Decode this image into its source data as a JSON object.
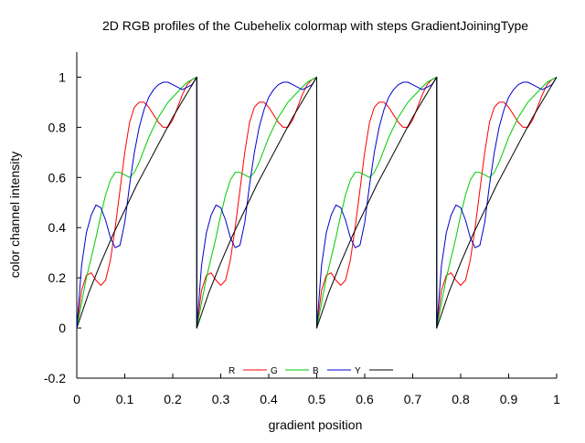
{
  "chart_data": {
    "type": "line",
    "title": "2D RGB profiles of the Cubehelix colormap with steps GradientJoiningType",
    "xlabel": "gradient position",
    "ylabel": "color channel intensity",
    "xlim": [
      0,
      1
    ],
    "ylim": [
      -0.2,
      1.1
    ],
    "xticks": [
      "0",
      "0.1",
      "0.2",
      "0.3",
      "0.4",
      "0.5",
      "0.6",
      "0.7",
      "0.8",
      "0.9",
      "1"
    ],
    "yticks": [
      "-0.2",
      "0",
      "0.2",
      "0.4",
      "0.6",
      "0.8",
      "1"
    ],
    "legend_position": "bottom-center",
    "repeats": 4,
    "segment_width": 0.25,
    "series": [
      {
        "name": "R",
        "color": "#ff0000",
        "x": [
          0,
          0.01,
          0.02,
          0.03,
          0.04,
          0.05,
          0.06,
          0.07,
          0.08,
          0.09,
          0.1,
          0.11,
          0.12,
          0.13,
          0.14,
          0.15,
          0.16,
          0.17,
          0.18,
          0.19,
          0.2,
          0.21,
          0.22,
          0.23,
          0.24,
          0.25
        ],
        "values": [
          0.0,
          0.15,
          0.21,
          0.22,
          0.19,
          0.17,
          0.19,
          0.27,
          0.4,
          0.55,
          0.7,
          0.82,
          0.88,
          0.9,
          0.9,
          0.88,
          0.85,
          0.82,
          0.8,
          0.8,
          0.83,
          0.88,
          0.93,
          0.97,
          0.99,
          1.0
        ]
      },
      {
        "name": "G",
        "color": "#00cc00",
        "x": [
          0,
          0.01,
          0.02,
          0.03,
          0.04,
          0.05,
          0.06,
          0.07,
          0.08,
          0.09,
          0.1,
          0.11,
          0.12,
          0.13,
          0.14,
          0.15,
          0.16,
          0.17,
          0.18,
          0.19,
          0.2,
          0.21,
          0.22,
          0.23,
          0.24,
          0.25
        ],
        "values": [
          0.0,
          0.1,
          0.2,
          0.28,
          0.36,
          0.45,
          0.53,
          0.59,
          0.62,
          0.62,
          0.61,
          0.6,
          0.62,
          0.66,
          0.71,
          0.76,
          0.8,
          0.84,
          0.87,
          0.9,
          0.92,
          0.94,
          0.96,
          0.98,
          0.99,
          1.0
        ]
      },
      {
        "name": "B",
        "color": "#0000cc",
        "x": [
          0,
          0.01,
          0.02,
          0.03,
          0.04,
          0.05,
          0.06,
          0.07,
          0.08,
          0.09,
          0.1,
          0.11,
          0.12,
          0.13,
          0.14,
          0.15,
          0.16,
          0.17,
          0.18,
          0.19,
          0.2,
          0.21,
          0.22,
          0.23,
          0.24,
          0.25
        ],
        "values": [
          0.0,
          0.25,
          0.38,
          0.45,
          0.49,
          0.48,
          0.43,
          0.36,
          0.32,
          0.33,
          0.42,
          0.57,
          0.7,
          0.8,
          0.87,
          0.92,
          0.95,
          0.97,
          0.98,
          0.98,
          0.97,
          0.96,
          0.95,
          0.96,
          0.97,
          1.0
        ]
      },
      {
        "name": "Y",
        "color": "#000000",
        "x": [
          0,
          0.025,
          0.05,
          0.075,
          0.1,
          0.125,
          0.15,
          0.175,
          0.2,
          0.225,
          0.25
        ],
        "values": [
          0.0,
          0.14,
          0.26,
          0.37,
          0.47,
          0.57,
          0.66,
          0.75,
          0.84,
          0.92,
          1.0
        ]
      }
    ]
  }
}
